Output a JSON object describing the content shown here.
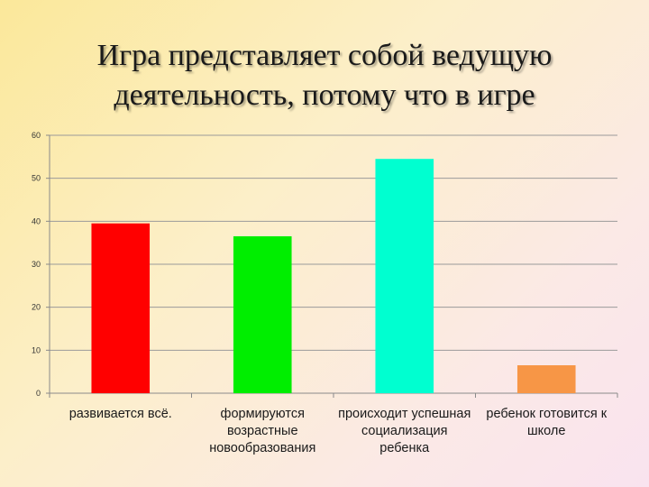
{
  "slide": {
    "title_line1": "Игра представляет собой ведущую",
    "title_line2": "деятельность, потому что в игре"
  },
  "chart_data": {
    "type": "bar",
    "categories": [
      "развивается всё.",
      "формируются возрастные новообразования",
      "происходит успешная социализация ребенка",
      "ребенок готовится к школе"
    ],
    "values": [
      39.5,
      36.5,
      54.5,
      6.5
    ],
    "colors": [
      "#ff0000",
      "#00ee00",
      "#00ffd0",
      "#f79646"
    ],
    "ylim": [
      0,
      60
    ],
    "yticks": [
      0,
      10,
      20,
      30,
      40,
      50,
      60
    ],
    "grid": true,
    "legend": "none",
    "title": "",
    "xlabel": "",
    "ylabel": ""
  }
}
